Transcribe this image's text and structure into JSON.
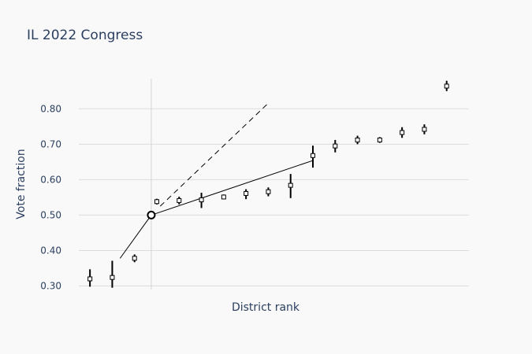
{
  "chart_data": {
    "type": "scatter",
    "title": "IL 2022 Congress",
    "xlabel": "District rank",
    "ylabel": "Vote fraction",
    "ylim": [
      0.29,
      0.885
    ],
    "xlim": [
      -0.5,
      17
    ],
    "yticks": [
      0.3,
      0.4,
      0.5,
      0.6,
      0.7,
      0.8
    ],
    "ytick_labels": [
      "0.30",
      "0.40",
      "0.50",
      "0.60",
      "0.70",
      "0.80"
    ],
    "grid": "horizontal",
    "center_line_x": 2.75,
    "series": [
      {
        "points": [
          {
            "x": 0,
            "y": 0.32,
            "lo": 0.298,
            "hi": 0.347
          },
          {
            "x": 1,
            "y": 0.324,
            "lo": 0.295,
            "hi": 0.371
          },
          {
            "x": 2,
            "y": 0.378,
            "lo": 0.367,
            "hi": 0.389
          },
          {
            "x": 3,
            "y": 0.538,
            "lo": 0.53,
            "hi": 0.546
          },
          {
            "x": 4,
            "y": 0.541,
            "lo": 0.53,
            "hi": 0.552
          },
          {
            "x": 5,
            "y": 0.543,
            "lo": 0.52,
            "hi": 0.563
          },
          {
            "x": 6,
            "y": 0.551,
            "lo": 0.545,
            "hi": 0.558
          },
          {
            "x": 7,
            "y": 0.561,
            "lo": 0.545,
            "hi": 0.573
          },
          {
            "x": 8,
            "y": 0.566,
            "lo": 0.553,
            "hi": 0.578
          },
          {
            "x": 9,
            "y": 0.584,
            "lo": 0.548,
            "hi": 0.616
          },
          {
            "x": 10,
            "y": 0.668,
            "lo": 0.634,
            "hi": 0.696
          },
          {
            "x": 11,
            "y": 0.695,
            "lo": 0.677,
            "hi": 0.712
          },
          {
            "x": 12,
            "y": 0.712,
            "lo": 0.7,
            "hi": 0.724
          },
          {
            "x": 13,
            "y": 0.712,
            "lo": 0.704,
            "hi": 0.72
          },
          {
            "x": 14,
            "y": 0.733,
            "lo": 0.718,
            "hi": 0.748
          },
          {
            "x": 15,
            "y": 0.742,
            "lo": 0.728,
            "hi": 0.756
          },
          {
            "x": 16,
            "y": 0.864,
            "lo": 0.85,
            "hi": 0.879
          }
        ]
      }
    ],
    "center_point": {
      "x": 2.75,
      "y": 0.5
    },
    "fit_lines": [
      {
        "style": "solid",
        "points": [
          {
            "x": 1.35,
            "y": 0.378
          },
          {
            "x": 2.75,
            "y": 0.5
          }
        ]
      },
      {
        "style": "solid",
        "points": [
          {
            "x": 2.75,
            "y": 0.5
          },
          {
            "x": 10,
            "y": 0.654
          }
        ]
      },
      {
        "style": "dashed",
        "points": [
          {
            "x": 3.15,
            "y": 0.525
          },
          {
            "x": 7.95,
            "y": 0.813
          }
        ]
      }
    ]
  }
}
